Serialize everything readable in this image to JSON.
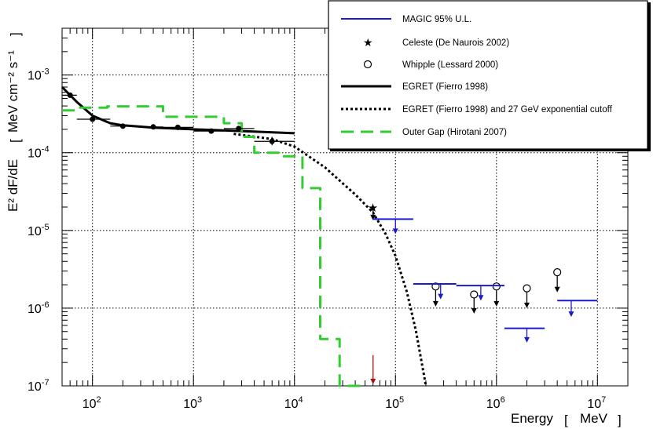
{
  "chart_data": {
    "type": "scatter",
    "title": "",
    "xlabel": "Energy",
    "xunit": "MeV",
    "ylabel": "E² dF/dE",
    "yunit": "MeV cm⁻² s⁻¹",
    "xscale": "log",
    "yscale": "log",
    "xlim": [
      50,
      20000000
    ],
    "ylim": [
      1e-07,
      0.004
    ],
    "grid": true,
    "legend_position": "top-right",
    "x_ticks": [
      {
        "base": "10",
        "exp": "2",
        "value": 100
      },
      {
        "base": "10",
        "exp": "3",
        "value": 1000
      },
      {
        "base": "10",
        "exp": "4",
        "value": 10000
      },
      {
        "base": "10",
        "exp": "5",
        "value": 100000
      },
      {
        "base": "10",
        "exp": "6",
        "value": 1000000
      },
      {
        "base": "10",
        "exp": "7",
        "value": 10000000
      }
    ],
    "y_ticks": [
      {
        "base": "10",
        "exp": "-7",
        "value": 1e-07
      },
      {
        "base": "10",
        "exp": "-6",
        "value": 1e-06
      },
      {
        "base": "10",
        "exp": "-5",
        "value": 1e-05
      },
      {
        "base": "10",
        "exp": "-4",
        "value": 0.0001
      },
      {
        "base": "10",
        "exp": "-3",
        "value": 0.001
      }
    ],
    "legend": [
      {
        "label": "MAGIC 95% U.L.",
        "style": "blue-solid"
      },
      {
        "label": "Celeste (De Naurois 2002)",
        "style": "star"
      },
      {
        "label": "Whipple (Lessard 2000)",
        "style": "open-circle"
      },
      {
        "label": "EGRET  (Fierro 1998)",
        "style": "black-solid"
      },
      {
        "label": "EGRET (Fierro 1998) and 27 GeV exponential cutoff",
        "style": "black-dotted"
      },
      {
        "label": "Outer Gap  (Hirotani 2007)",
        "style": "green-dashed"
      }
    ],
    "series": [
      {
        "name": "EGRET (Fierro 1998)",
        "kind": "points",
        "color": "#000000",
        "points": [
          {
            "x": 60,
            "y": 0.00055,
            "xerr": [
              50,
              70
            ]
          },
          {
            "x": 100,
            "y": 0.00027,
            "xerr": [
              70,
              150
            ]
          },
          {
            "x": 200,
            "y": 0.00022,
            "xerr": [
              150,
              300
            ]
          },
          {
            "x": 400,
            "y": 0.000215,
            "xerr": [
              300,
              500
            ]
          },
          {
            "x": 700,
            "y": 0.000212,
            "xerr": [
              500,
              1000
            ]
          },
          {
            "x": 1500,
            "y": 0.00019,
            "xerr": [
              1000,
              2000
            ]
          },
          {
            "x": 2800,
            "y": 0.000205,
            "xerr": [
              2000,
              4000
            ]
          },
          {
            "x": 6000,
            "y": 0.00014,
            "xerr": [
              4000,
              10000
            ],
            "yerr": [
              0.000125,
              0.00016
            ]
          }
        ]
      },
      {
        "name": "EGRET fit (Fierro 1998)",
        "kind": "line",
        "color": "#000000",
        "points": [
          [
            50,
            0.0007
          ],
          [
            70,
            0.00045
          ],
          [
            100,
            0.0003
          ],
          [
            150,
            0.00024
          ],
          [
            200,
            0.000225
          ],
          [
            400,
            0.00021
          ],
          [
            1000,
            0.0002
          ],
          [
            3000,
            0.00019
          ],
          [
            10000,
            0.000178
          ]
        ]
      },
      {
        "name": "EGRET and 27 GeV exponential cutoff",
        "kind": "line",
        "color": "#000000",
        "dash": "dotted",
        "points": [
          [
            2500,
            0.000175
          ],
          [
            6000,
            0.00015
          ],
          [
            10000,
            0.00012
          ],
          [
            20000,
            6.5e-05
          ],
          [
            40000,
            2.9e-05
          ],
          [
            60000,
            1.7e-05
          ],
          [
            80000,
            9e-06
          ],
          [
            100000,
            4.7e-06
          ],
          [
            130000,
            1.6e-06
          ],
          [
            160000,
            5e-07
          ],
          [
            200000,
            1e-07
          ]
        ]
      },
      {
        "name": "Outer Gap (Hirotani 2007)",
        "kind": "step",
        "color": "#33cc33",
        "dash": "dashed",
        "points": [
          [
            50,
            0.00035
          ],
          [
            70,
            0.00035
          ],
          [
            70,
            0.00038
          ],
          [
            140,
            0.00038
          ],
          [
            140,
            0.000395
          ],
          [
            500,
            0.000395
          ],
          [
            500,
            0.00029
          ],
          [
            2000,
            0.00029
          ],
          [
            2000,
            0.00024
          ],
          [
            3000,
            0.00024
          ],
          [
            3000,
            0.00016
          ],
          [
            4000,
            0.00016
          ],
          [
            4000,
            0.0001
          ],
          [
            7000,
            0.0001
          ],
          [
            7000,
            9e-05
          ],
          [
            12000,
            9e-05
          ],
          [
            12000,
            3.5e-05
          ],
          [
            18000,
            3.5e-05
          ],
          [
            18000,
            4e-07
          ],
          [
            28000,
            4e-07
          ],
          [
            28000,
            1e-07
          ],
          [
            50000,
            1e-07
          ]
        ]
      },
      {
        "name": "Celeste (De Naurois 2002)",
        "kind": "upper_limit_markers",
        "marker": "star",
        "color": "#000000",
        "points": [
          {
            "x": 60000,
            "y": 2e-05,
            "arrow_to": 1.35e-05
          }
        ]
      },
      {
        "name": "Whipple (Lessard 2000)",
        "kind": "upper_limit_markers",
        "marker": "open-circle",
        "color": "#000000",
        "points": [
          {
            "x": 250000,
            "y": 1.9e-06,
            "arrow_to": 1.05e-06
          },
          {
            "x": 600000,
            "y": 1.5e-06,
            "arrow_to": 8.5e-07
          },
          {
            "x": 1000000,
            "y": 1.9e-06,
            "arrow_to": 1.05e-06
          },
          {
            "x": 2000000,
            "y": 1.8e-06,
            "arrow_to": 1e-06
          },
          {
            "x": 4000000,
            "y": 2.9e-06,
            "arrow_to": 1.6e-06
          }
        ]
      },
      {
        "name": "MAGIC 95% U.L.",
        "kind": "upper_limits",
        "color": "#1a1acc",
        "points": [
          {
            "x1": 60000,
            "x2": 150000,
            "y": 1.4e-05,
            "arrow_x": 100000,
            "arrow_to": 9e-06
          },
          {
            "x1": 150000,
            "x2": 400000,
            "y": 2.05e-06,
            "arrow_x": 280000,
            "arrow_to": 1.3e-06
          },
          {
            "x1": 400000,
            "x2": 1200000,
            "y": 1.95e-06,
            "arrow_x": 700000,
            "arrow_to": 1.25e-06
          },
          {
            "x1": 1200000,
            "x2": 3000000,
            "y": 5.5e-07,
            "arrow_x": 2000000,
            "arrow_to": 3.6e-07
          },
          {
            "x1": 4000000,
            "x2": 10000000,
            "y": 1.25e-06,
            "arrow_x": 5500000,
            "arrow_to": 7.7e-07
          }
        ]
      },
      {
        "name": "Red upper limit",
        "kind": "arrow",
        "color": "#aa1111",
        "points": [
          {
            "x": 60000,
            "y": 1.8e-07,
            "arrow_to": 1.05e-07
          }
        ]
      }
    ]
  }
}
